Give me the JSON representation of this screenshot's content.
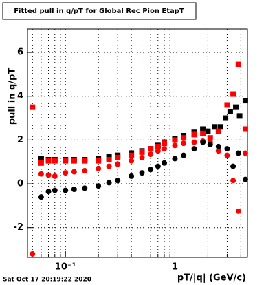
{
  "chart_data": {
    "type": "scatter",
    "title": "Fitted pull in q/pT for Global Rec Pion EtapT",
    "xlabel": "pT/|q| (GeV/c)",
    "ylabel": "pull in q/pT",
    "footer": "Sat Oct 17 20:19:22 2020",
    "xlog": true,
    "grid": true,
    "xlim": [
      0.045,
      4.6
    ],
    "ylim": [
      -3.36,
      7.07
    ],
    "xticks": [
      {
        "value": 0.1,
        "label": "10⁻¹"
      },
      1
    ],
    "xminor": [
      0.05,
      0.06,
      0.07,
      0.08,
      0.09,
      0.2,
      0.3,
      0.4,
      0.5,
      0.6,
      0.7,
      0.8,
      0.9,
      2,
      3,
      4
    ],
    "yticks": [
      -2,
      0,
      2,
      4,
      6
    ],
    "series": [
      {
        "name": "black-squares",
        "color": "#000000",
        "marker": "square",
        "x": [
          0.06,
          0.07,
          0.08,
          0.1,
          0.12,
          0.15,
          0.2,
          0.25,
          0.3,
          0.4,
          0.5,
          0.6,
          0.7,
          0.8,
          1,
          1.2,
          1.5,
          1.8,
          2,
          2.3,
          2.6,
          2.9,
          3.2,
          3.6,
          3.9,
          4.4
        ],
        "values": [
          1.15,
          1.1,
          1.1,
          1.1,
          1.1,
          1.1,
          1.15,
          1.25,
          1.3,
          1.4,
          1.5,
          1.6,
          1.75,
          1.9,
          2.05,
          2.2,
          2.35,
          2.5,
          2.4,
          2.6,
          2.6,
          3.0,
          3.3,
          3.5,
          3.1,
          3.8
        ]
      },
      {
        "name": "red-squares",
        "color": "#ff0000",
        "marker": "square",
        "x": [
          0.05,
          0.06,
          0.07,
          0.08,
          0.1,
          0.12,
          0.15,
          0.2,
          0.25,
          0.3,
          0.4,
          0.5,
          0.6,
          0.7,
          0.8,
          1,
          1.2,
          1.5,
          1.8,
          2.1,
          2.5,
          3.0,
          3.4,
          3.8,
          4.4
        ],
        "values": [
          3.5,
          0.95,
          1.05,
          1.05,
          1.05,
          1.05,
          1.05,
          1.05,
          1.1,
          1.2,
          1.3,
          1.45,
          1.6,
          1.7,
          1.85,
          2.0,
          2.1,
          2.25,
          2.3,
          2.1,
          2.4,
          3.6,
          4.1,
          5.45,
          2.5
        ]
      },
      {
        "name": "red-circles",
        "color": "#ff0000",
        "marker": "circle",
        "x": [
          0.05,
          0.06,
          0.07,
          0.08,
          0.1,
          0.12,
          0.15,
          0.2,
          0.25,
          0.3,
          0.4,
          0.5,
          0.6,
          0.7,
          0.8,
          1,
          1.2,
          1.5,
          1.8,
          2.1,
          2.5,
          3.0,
          3.4,
          3.8,
          4.4
        ],
        "values": [
          -3.2,
          0.45,
          0.4,
          0.35,
          0.5,
          0.55,
          0.6,
          0.7,
          0.8,
          0.9,
          1.05,
          1.2,
          1.35,
          1.5,
          1.6,
          1.75,
          1.85,
          1.9,
          1.95,
          1.9,
          1.5,
          1.3,
          0.15,
          -1.25,
          1.4
        ]
      },
      {
        "name": "black-circles",
        "color": "#000000",
        "marker": "circle",
        "x": [
          0.06,
          0.07,
          0.08,
          0.1,
          0.12,
          0.15,
          0.2,
          0.25,
          0.3,
          0.4,
          0.5,
          0.6,
          0.7,
          0.8,
          1,
          1.2,
          1.5,
          1.8,
          2.1,
          2.5,
          3.0,
          3.4,
          3.8,
          4.4
        ],
        "values": [
          -0.6,
          -0.35,
          -0.3,
          -0.3,
          -0.25,
          -0.2,
          -0.1,
          0.05,
          0.15,
          0.35,
          0.5,
          0.65,
          0.8,
          0.95,
          1.15,
          1.3,
          1.6,
          1.9,
          1.8,
          1.7,
          1.6,
          0.8,
          1.4,
          0.2
        ]
      }
    ]
  }
}
